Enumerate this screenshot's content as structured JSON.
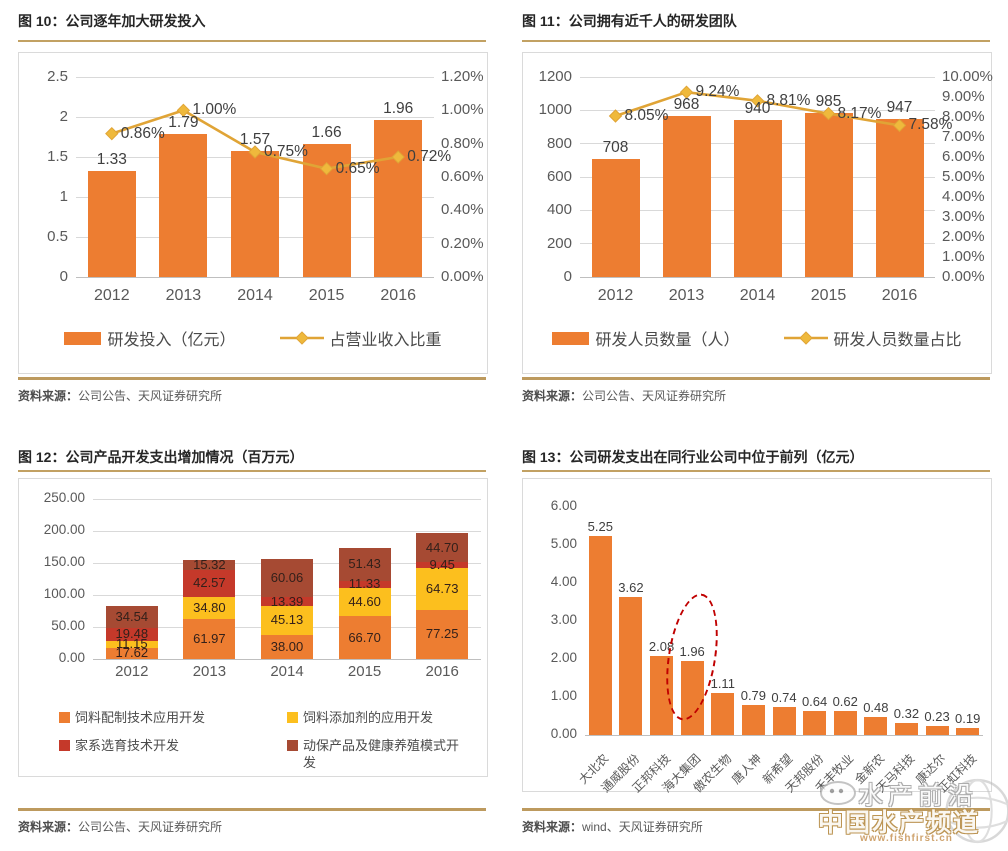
{
  "colors": {
    "bar_orange": "#ED7D31",
    "line_gold": "#E0A436",
    "marker_gold": "#EFB93C",
    "stack_orange": "#ED7D31",
    "stack_gold": "#FCBF1E",
    "stack_red": "#C5392A",
    "stack_darkred": "#A64A33",
    "grid": "#D9D9D9",
    "baseline": "#BFBFBF",
    "axis_text": "#595959",
    "label_text": "#3F3F3F",
    "highlight_red": "#C00000"
  },
  "panels": [
    {
      "title": "图 10：公司逐年加大研发投入",
      "source_prefix": "资料来源：",
      "source": "公司公告、天风证券研究所"
    },
    {
      "title": "图 11：公司拥有近千人的研发团队",
      "source_prefix": "资料来源：",
      "source": "公司公告、天风证券研究所"
    },
    {
      "title": "图 12：公司产品开发支出增加情况（百万元）",
      "source_prefix": "资料来源：",
      "source": "公司公告、天风证券研究所"
    },
    {
      "title": "图 13：公司研发支出在同行业公司中位于前列（亿元）",
      "source_prefix": "资料来源：",
      "source": "wind、天风证券研究所"
    }
  ],
  "chart_data": [
    {
      "type": "combo_bar_line",
      "title": "图 10：公司逐年加大研发投入",
      "categories": [
        "2012",
        "2013",
        "2014",
        "2015",
        "2016"
      ],
      "bar_series": {
        "name": "研发投入（亿元）",
        "values": [
          1.33,
          1.79,
          1.57,
          1.66,
          1.96
        ],
        "labels": [
          "1.33",
          "1.79",
          "1.57",
          "1.66",
          "1.96"
        ],
        "axis_max": 2.5
      },
      "line_series": {
        "name": "占营业收入比重",
        "values": [
          0.86,
          1.0,
          0.75,
          0.65,
          0.72
        ],
        "labels": [
          "0.86%",
          "1.00%",
          "0.75%",
          "0.65%",
          "0.72%"
        ],
        "axis_max": 1.2
      },
      "left_ticks": [
        "2.5",
        "2",
        "1.5",
        "1",
        "0.5",
        "0"
      ],
      "right_ticks": [
        "1.20%",
        "1.00%",
        "0.80%",
        "0.60%",
        "0.40%",
        "0.20%",
        "0.00%"
      ],
      "grid": true,
      "legend_position": "bottom"
    },
    {
      "type": "combo_bar_line",
      "title": "图 11：公司拥有近千人的研发团队",
      "categories": [
        "2012",
        "2013",
        "2014",
        "2015",
        "2016"
      ],
      "bar_series": {
        "name": "研发人员数量（人）",
        "values": [
          708,
          968,
          940,
          985,
          947
        ],
        "labels": [
          "708",
          "968",
          "940",
          "985",
          "947"
        ],
        "axis_max": 1200
      },
      "line_series": {
        "name": "研发人员数量占比",
        "values": [
          8.05,
          9.24,
          8.81,
          8.17,
          7.58
        ],
        "labels": [
          "8.05%",
          "9.24%",
          "8.81%",
          "8.17%",
          "7.58%"
        ],
        "axis_max": 10
      },
      "left_ticks": [
        "1200",
        "1000",
        "800",
        "600",
        "400",
        "200",
        "0"
      ],
      "right_ticks": [
        "10.00%",
        "9.00%",
        "8.00%",
        "7.00%",
        "6.00%",
        "5.00%",
        "4.00%",
        "3.00%",
        "2.00%",
        "1.00%",
        "0.00%"
      ],
      "grid": true,
      "legend_position": "bottom"
    },
    {
      "type": "stacked_bar",
      "title": "图 12：公司产品开发支出增加情况（百万元）",
      "categories": [
        "2012",
        "2013",
        "2014",
        "2015",
        "2016"
      ],
      "series": [
        {
          "name": "饲料配制技术应用开发",
          "color_key": "stack_orange",
          "values": [
            17.62,
            61.97,
            38.0,
            66.7,
            77.25
          ],
          "labels": [
            "17.62",
            "61.97",
            "38.00",
            "66.70",
            "77.25"
          ]
        },
        {
          "name": "饲料添加剂的应用开发",
          "color_key": "stack_gold",
          "values": [
            11.15,
            34.8,
            45.13,
            44.6,
            64.73
          ],
          "labels": [
            "11.15",
            "34.80",
            "45.13",
            "44.60",
            "64.73"
          ]
        },
        {
          "name": "家系选育技术开发",
          "color_key": "stack_red",
          "values": [
            19.48,
            42.57,
            13.39,
            11.33,
            9.45
          ],
          "labels": [
            "19.48",
            "42.57",
            "13.39",
            "11.33",
            "9.45"
          ]
        },
        {
          "name": "动保产品及健康养殖模式开发",
          "color_key": "stack_darkred",
          "values": [
            34.54,
            15.32,
            60.06,
            51.43,
            44.7
          ],
          "labels": [
            "34.54",
            "15.32",
            "60.06",
            "51.43",
            "44.70"
          ]
        }
      ],
      "y_ticks": [
        "250.00",
        "200.00",
        "150.00",
        "100.00",
        "50.00",
        "0.00"
      ],
      "axis_max": 250,
      "grid": true,
      "legend_position": "bottom-2col"
    },
    {
      "type": "bar",
      "title": "图 13：公司研发支出在同行业公司中位于前列（亿元）",
      "categories": [
        "大北农",
        "通威股份",
        "正邦科技",
        "海大集团",
        "傲农生物",
        "唐人神",
        "新希望",
        "天邦股份",
        "禾丰牧业",
        "金新农",
        "天马科技",
        "康达尔",
        "正虹科技"
      ],
      "values": [
        5.25,
        3.62,
        2.08,
        1.96,
        1.11,
        0.79,
        0.74,
        0.64,
        0.62,
        0.48,
        0.32,
        0.23,
        0.19
      ],
      "labels": [
        "5.25",
        "3.62",
        "2.08",
        "1.96",
        "1.11",
        "0.79",
        "0.74",
        "0.64",
        "0.62",
        "0.48",
        "0.32",
        "0.23",
        "0.19"
      ],
      "y_ticks": [
        "6.00",
        "5.00",
        "4.00",
        "3.00",
        "2.00",
        "1.00",
        "0.00"
      ],
      "axis_max": 6,
      "grid": false,
      "highlight": {
        "index": 3,
        "shape": "red-dashed-ellipse"
      }
    }
  ],
  "watermark": {
    "line1": "水产前沿",
    "line2": "中国水产频道",
    "url": "www.fishfirst.cn"
  }
}
